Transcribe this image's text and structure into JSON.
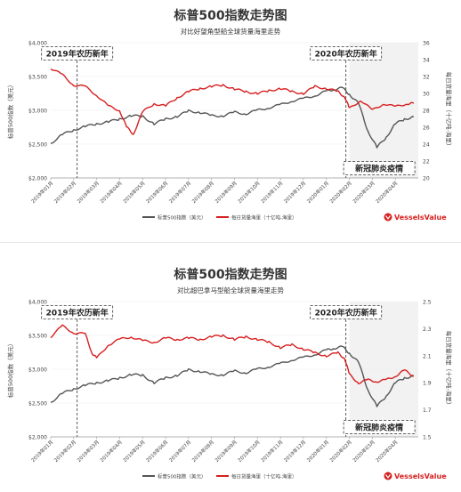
{
  "chart_data": [
    {
      "type": "line",
      "title": "标普500指数走势图",
      "subtitle": "对比好望角型船全球货量海里走势",
      "ylabel": "标普500指数（美元）",
      "ylabel_right": "每日货量海里（十亿吨-海里）",
      "ylim": [
        2000,
        4000
      ],
      "ylim_right": [
        20,
        36
      ],
      "yticks": [
        "$2,000",
        "$2,500",
        "$3,000",
        "$3,500",
        "$4,000"
      ],
      "yticks_right": [
        "20",
        "22",
        "24",
        "26",
        "28",
        "30",
        "32",
        "34",
        "36"
      ],
      "xticks": [
        "2019年01月",
        "2019年02月",
        "2019年03月",
        "2019年04月",
        "2019年05月",
        "2019年06月",
        "2019年07月",
        "2019年08月",
        "2019年09月",
        "2019年10月",
        "2019年11月",
        "2019年12月",
        "2020年01月",
        "2020年02月",
        "2020年03月",
        "2020年04月"
      ],
      "annotations": [
        "2019年农历新年",
        "2020年农历新年",
        "新冠肺炎疫情"
      ],
      "series": [
        {
          "name": "标普500指数（美元）",
          "color": "#555555",
          "axis": "left",
          "x": [
            0.0,
            0.5,
            1.0,
            1.5,
            2.0,
            2.5,
            3.0,
            3.5,
            4.0,
            4.5,
            5.0,
            5.5,
            6.0,
            6.5,
            7.0,
            7.5,
            8.0,
            8.5,
            9.0,
            9.5,
            10.0,
            10.5,
            11.0,
            11.5,
            12.0,
            12.3,
            12.7,
            13.0,
            13.4,
            13.8,
            14.2,
            14.6,
            15.0,
            15.4,
            15.8
          ],
          "values": [
            2510,
            2640,
            2710,
            2760,
            2800,
            2830,
            2870,
            2920,
            2910,
            2800,
            2870,
            2910,
            2990,
            2970,
            2920,
            2920,
            2970,
            2950,
            3000,
            3040,
            3080,
            3140,
            3170,
            3220,
            3280,
            3310,
            3330,
            3240,
            3100,
            2700,
            2450,
            2600,
            2800,
            2870,
            2900
          ]
        },
        {
          "name": "每日货量海里（十亿吨-海里）",
          "color": "#d6201f",
          "axis": "right",
          "x": [
            0.0,
            0.5,
            1.0,
            1.5,
            2.0,
            2.5,
            3.0,
            3.3,
            3.6,
            4.0,
            4.5,
            5.0,
            5.5,
            6.0,
            6.5,
            7.0,
            7.5,
            8.0,
            8.5,
            9.0,
            9.5,
            10.0,
            10.5,
            11.0,
            11.5,
            12.0,
            12.5,
            12.8,
            13.0,
            13.5,
            14.0,
            14.5,
            15.0,
            15.5,
            15.8
          ],
          "values": [
            33.0,
            32.2,
            31.0,
            30.8,
            29.8,
            28.5,
            28.0,
            26.0,
            25.2,
            27.8,
            28.8,
            28.5,
            29.5,
            30.2,
            30.6,
            30.8,
            31.0,
            30.5,
            30.2,
            30.0,
            30.3,
            30.6,
            30.2,
            30.0,
            30.8,
            30.6,
            30.2,
            29.6,
            28.2,
            29.2,
            28.0,
            28.8,
            28.4,
            28.8,
            28.8
          ]
        }
      ],
      "legend": [
        "标普500指数（美元）",
        "每日货量海里（十亿吨-海里）"
      ],
      "legend_position": "bottom",
      "brand": "VesselsValue"
    },
    {
      "type": "line",
      "title": "标普500指数走势图",
      "subtitle": "对比超巴拿马型船全球货量海里走势",
      "ylabel": "标普500指数（美元）",
      "ylabel_right": "每日货量海里（十亿吨-海里）",
      "ylim": [
        2000,
        4000
      ],
      "ylim_right": [
        1.5,
        2.5
      ],
      "yticks": [
        "$2,000",
        "$2,500",
        "$3,000",
        "$3,500",
        "$4,000"
      ],
      "yticks_right": [
        "1.5",
        "1.7",
        "1.9",
        "2.1",
        "2.3",
        "2.5"
      ],
      "xticks": [
        "2019年01月",
        "2019年02月",
        "2019年03月",
        "2019年04月",
        "2019年05月",
        "2019年06月",
        "2019年07月",
        "2019年08月",
        "2019年09月",
        "2019年10月",
        "2019年11月",
        "2019年12月",
        "2020年01月",
        "2020年02月",
        "2020年03月",
        "2020年04月"
      ],
      "annotations": [
        "2019年农历新年",
        "2020年农历新年",
        "新冠肺炎疫情"
      ],
      "series": [
        {
          "name": "标普500指数（美元）",
          "color": "#555555",
          "axis": "left",
          "x": [
            0.0,
            0.5,
            1.0,
            1.5,
            2.0,
            2.5,
            3.0,
            3.5,
            4.0,
            4.5,
            5.0,
            5.5,
            6.0,
            6.5,
            7.0,
            7.5,
            8.0,
            8.5,
            9.0,
            9.5,
            10.0,
            10.5,
            11.0,
            11.5,
            12.0,
            12.3,
            12.7,
            13.0,
            13.4,
            13.8,
            14.2,
            14.6,
            15.0,
            15.4,
            15.8
          ],
          "values": [
            2510,
            2640,
            2710,
            2760,
            2800,
            2830,
            2870,
            2920,
            2910,
            2800,
            2870,
            2910,
            2990,
            2970,
            2920,
            2920,
            2970,
            2950,
            3000,
            3040,
            3080,
            3140,
            3170,
            3220,
            3280,
            3310,
            3330,
            3240,
            3100,
            2700,
            2450,
            2600,
            2800,
            2870,
            2900
          ]
        },
        {
          "name": "每日货量海里（十亿吨-海里）",
          "color": "#d6201f",
          "axis": "right",
          "x": [
            0.0,
            0.5,
            1.0,
            1.5,
            1.8,
            2.0,
            2.5,
            3.0,
            3.5,
            4.0,
            4.5,
            5.0,
            5.5,
            6.0,
            6.5,
            7.0,
            7.5,
            8.0,
            8.5,
            9.0,
            9.5,
            10.0,
            10.5,
            11.0,
            11.5,
            12.0,
            12.5,
            12.8,
            13.0,
            13.4,
            13.8,
            14.2,
            14.6,
            15.0,
            15.4,
            15.8
          ],
          "values": [
            2.24,
            2.32,
            2.27,
            2.26,
            2.12,
            2.08,
            2.18,
            2.22,
            2.24,
            2.21,
            2.2,
            2.23,
            2.22,
            2.23,
            2.22,
            2.24,
            2.25,
            2.22,
            2.24,
            2.22,
            2.2,
            2.16,
            2.18,
            2.15,
            2.12,
            2.1,
            2.12,
            2.08,
            1.96,
            1.9,
            1.92,
            1.91,
            1.92,
            1.95,
            1.99,
            1.95
          ]
        }
      ],
      "legend": [
        "标普500指数（美元）",
        "每日货量海里（十亿吨-海里）"
      ],
      "legend_position": "bottom",
      "brand": "VesselsValue"
    }
  ]
}
